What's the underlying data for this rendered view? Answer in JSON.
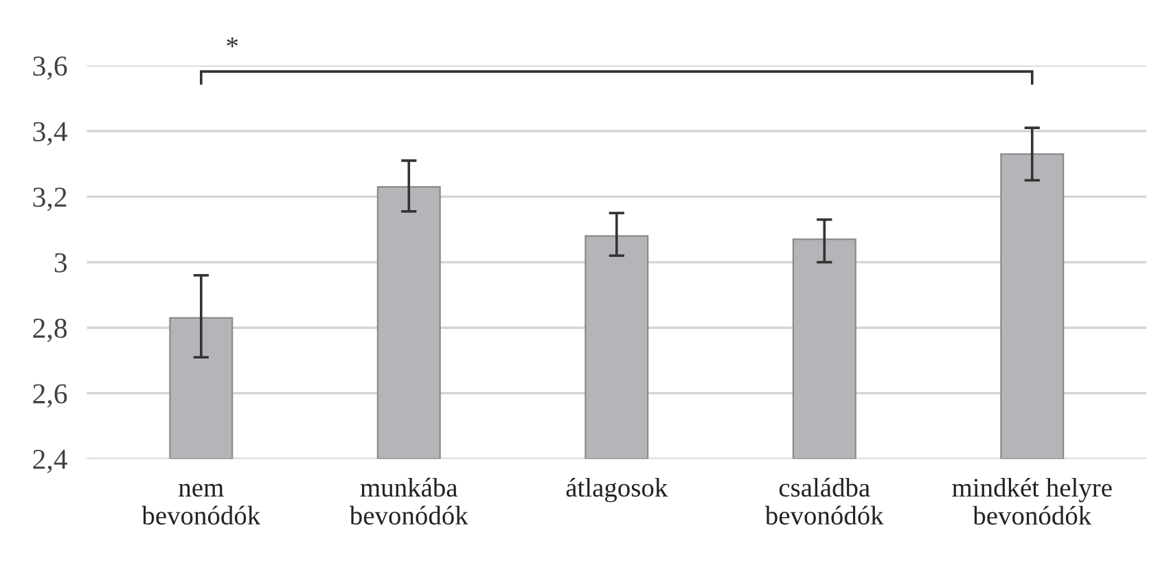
{
  "chart_data": {
    "type": "bar",
    "categories": [
      "nem\nbevonódók",
      "munkába\nbevonódók",
      "átlagosok",
      "családba\nbevonódók",
      "mindkét helyre\nbevonódók"
    ],
    "values": [
      2.83,
      3.23,
      3.08,
      3.07,
      3.33
    ],
    "errors": [
      [
        2.71,
        2.96
      ],
      [
        3.155,
        3.31
      ],
      [
        3.02,
        3.15
      ],
      [
        3.0,
        3.13
      ],
      [
        3.25,
        3.41
      ]
    ],
    "color": "#b4b5b9",
    "ylim": [
      2.4,
      3.6
    ],
    "yticks": [
      {
        "value": 2.4,
        "label": "2,4"
      },
      {
        "value": 2.6,
        "label": "2,6"
      },
      {
        "value": 2.8,
        "label": "2,8"
      },
      {
        "value": 3,
        "label": "3"
      },
      {
        "value": 3.2,
        "label": "3,2"
      },
      {
        "value": 3.4,
        "label": "3,4"
      },
      {
        "value": 3.6,
        "label": "3,6"
      }
    ],
    "grid": "y",
    "annotations": [
      "*"
    ]
  }
}
